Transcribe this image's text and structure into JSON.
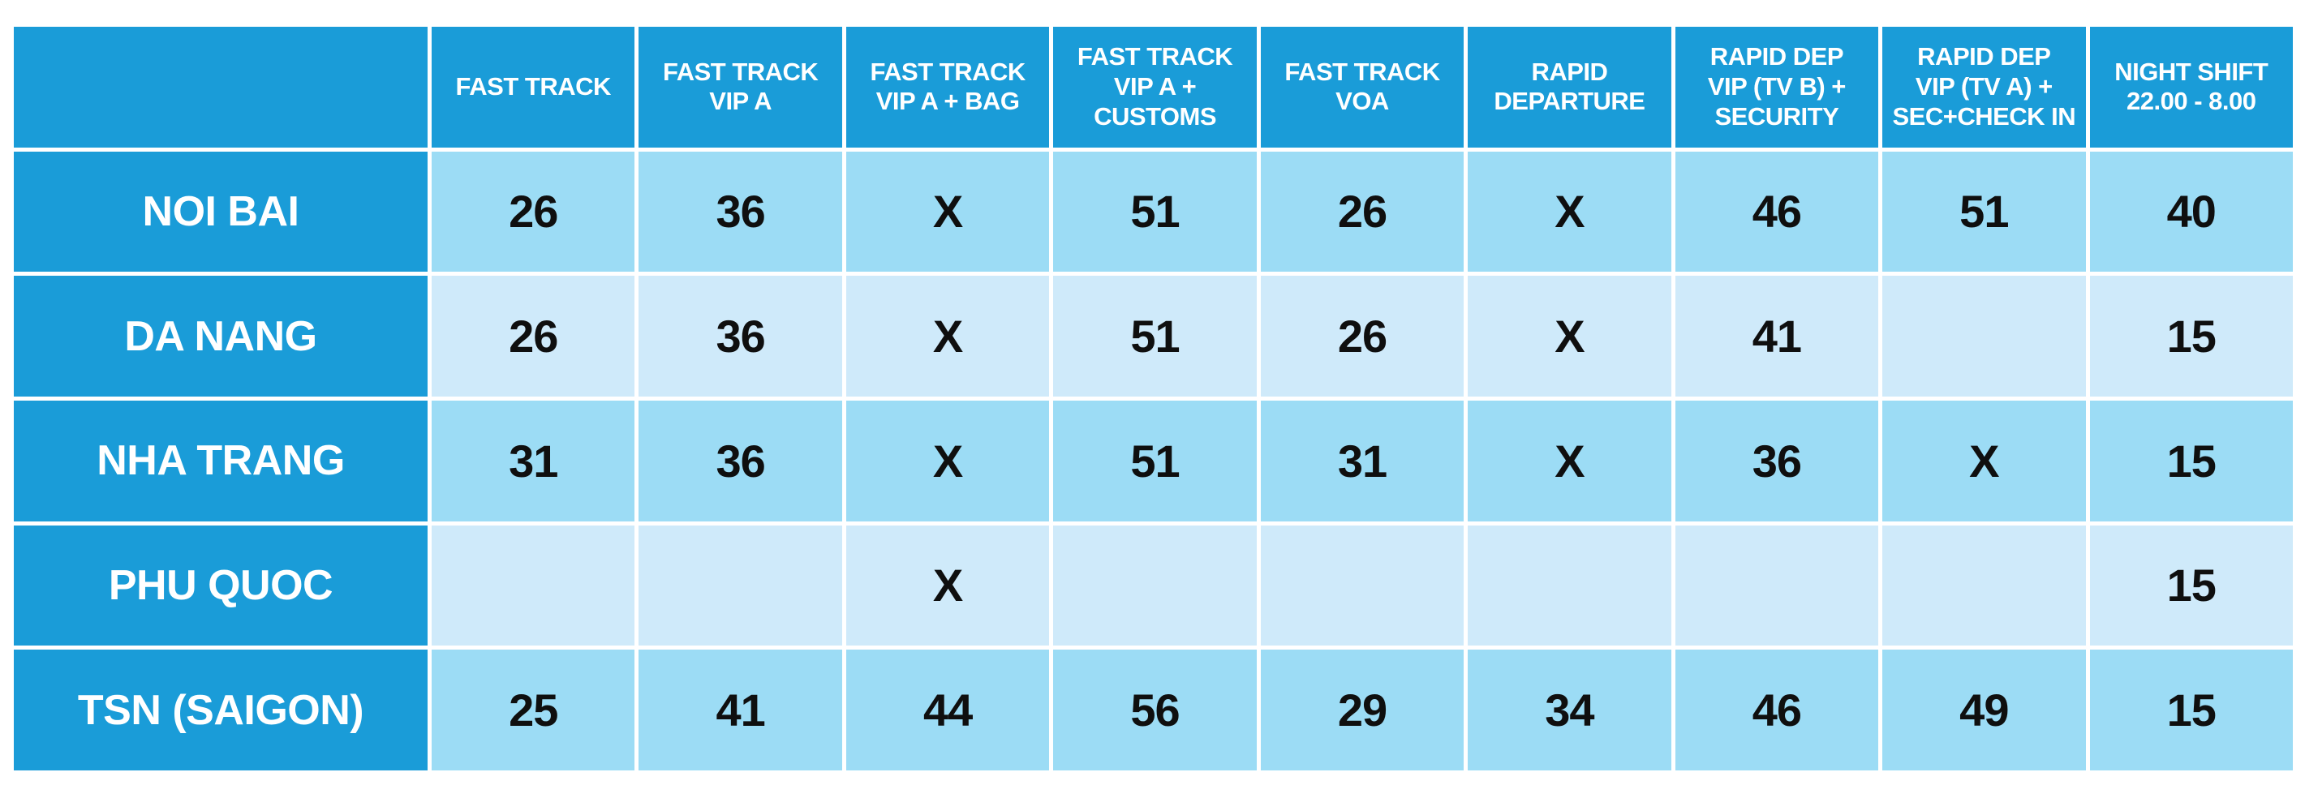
{
  "colors": {
    "header_blue": "#1a9cd8",
    "row_blue_medium": "#9cdcf5",
    "row_blue_light": "#cfeafa",
    "gap_white": "#ffffff",
    "header_text": "#ffffff",
    "value_text": "#0f0f0f"
  },
  "corner_label": "",
  "header_lines": [
    [
      "FAST TRACK"
    ],
    [
      "FAST TRACK",
      "VIP A"
    ],
    [
      "FAST TRACK",
      "VIP A + BAG"
    ],
    [
      "FAST TRACK",
      "VIP A +",
      "CUSTOMS"
    ],
    [
      "FAST TRACK",
      "VOA"
    ],
    [
      "RAPID",
      "DEPARTURE"
    ],
    [
      "RAPID DEP",
      "VIP (TV B) +",
      "SECURITY"
    ],
    [
      "RAPID DEP",
      "VIP (TV A) +",
      "SEC+CHECK IN"
    ],
    [
      "NIGHT SHIFT",
      "22.00 - 8.00"
    ]
  ],
  "chart_data": {
    "type": "table",
    "columns": [
      "FAST TRACK",
      "FAST TRACK VIP A",
      "FAST TRACK VIP A + BAG",
      "FAST TRACK VIP A + CUSTOMS",
      "FAST TRACK VOA",
      "RAPID DEPARTURE",
      "RAPID DEP VIP (TV B) + SECURITY",
      "RAPID DEP VIP (TV A) + SEC+CHECK IN",
      "NIGHT SHIFT 22.00 - 8.00"
    ],
    "rows": [
      {
        "label": "NOI BAI",
        "values": [
          26,
          36,
          "X",
          51,
          26,
          "X",
          46,
          51,
          40
        ]
      },
      {
        "label": "DA NANG",
        "values": [
          26,
          36,
          "X",
          51,
          26,
          "X",
          41,
          "",
          15
        ]
      },
      {
        "label": "NHA TRANG",
        "values": [
          31,
          36,
          "X",
          51,
          31,
          "X",
          36,
          "X",
          15
        ]
      },
      {
        "label": "PHU QUOC",
        "values": [
          "",
          "",
          "X",
          "",
          "",
          "",
          "",
          "",
          15
        ]
      },
      {
        "label": "TSN (SAIGON)",
        "values": [
          25,
          41,
          44,
          56,
          29,
          34,
          46,
          49,
          15
        ]
      }
    ]
  }
}
